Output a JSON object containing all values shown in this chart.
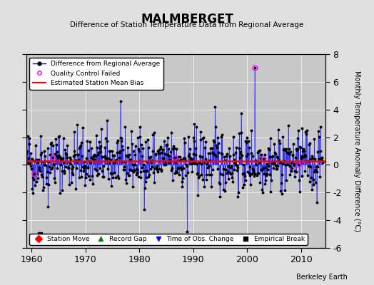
{
  "title": "MALMBERGET",
  "subtitle": "Difference of Station Temperature Data from Regional Average",
  "ylabel": "Monthly Temperature Anomaly Difference (°C)",
  "xlabel_years": [
    1960,
    1970,
    1980,
    1990,
    2000,
    2010
  ],
  "ylim": [
    -6,
    8
  ],
  "yticks": [
    -6,
    -4,
    -2,
    0,
    2,
    4,
    6,
    8
  ],
  "background_color": "#e0e0e0",
  "plot_bg_color": "#c8c8c8",
  "mean_bias": 0.3,
  "xlim_start": 1959,
  "xlim_end": 2014.5,
  "berkeley_earth_text": "Berkeley Earth"
}
